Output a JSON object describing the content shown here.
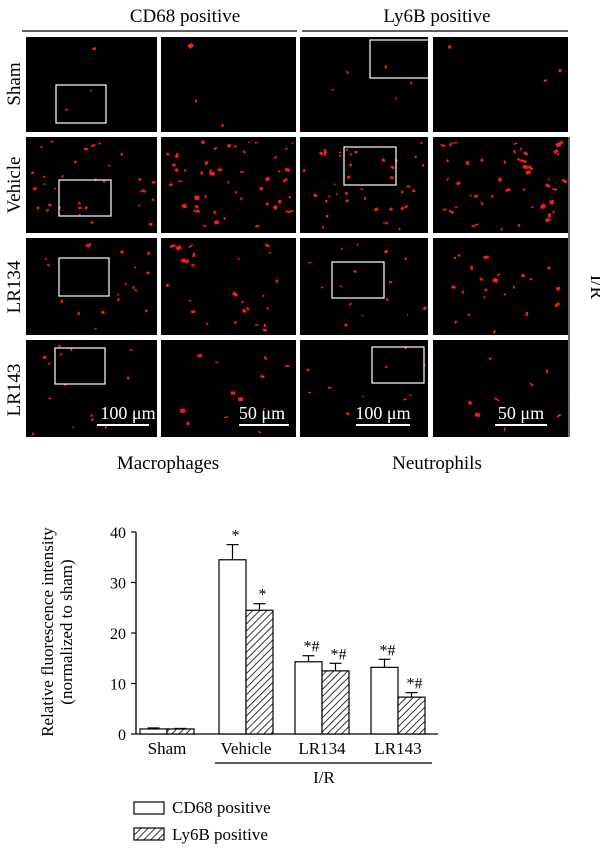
{
  "figure": {
    "column_headers": [
      "CD68 positive",
      "Ly6B positive"
    ],
    "row_labels": [
      "Sham",
      "Vehicle",
      "LR134",
      "LR143"
    ],
    "group_bracket_label": "I/R",
    "cell_types": [
      "Macrophages",
      "Neutrophils"
    ],
    "scale_bars": [
      "100 μm",
      "50 μm",
      "100 μm",
      "50 μm"
    ]
  },
  "chart_data": {
    "type": "bar",
    "categories": [
      "Sham",
      "Vehicle",
      "LR134",
      "LR143"
    ],
    "group_label": "I/R",
    "ylabel": [
      "Relative fluorescence intensity",
      "(normalized to sham)"
    ],
    "ylim": [
      0,
      40
    ],
    "yticks": [
      0,
      10,
      20,
      30,
      40
    ],
    "series": [
      {
        "name": "CD68 positive",
        "fill": "white",
        "values": [
          1.0,
          34.5,
          14.3,
          13.2
        ],
        "errors": [
          0.2,
          3.0,
          1.2,
          1.6
        ],
        "annotations": [
          "",
          "*",
          "*#",
          "*#"
        ]
      },
      {
        "name": "Ly6B positive",
        "fill": "hatched",
        "values": [
          1.0,
          24.5,
          12.5,
          7.3
        ],
        "errors": [
          0.1,
          1.3,
          1.5,
          0.9
        ],
        "annotations": [
          "",
          "*",
          "*#",
          "*#"
        ]
      }
    ],
    "legend": [
      "CD68 positive",
      "Ly6B positive"
    ],
    "legend_position": "bottom"
  },
  "colors": {
    "micrograph_bg": "#000000",
    "signal": "#ff1a1a",
    "bar_edge": "#000000"
  }
}
